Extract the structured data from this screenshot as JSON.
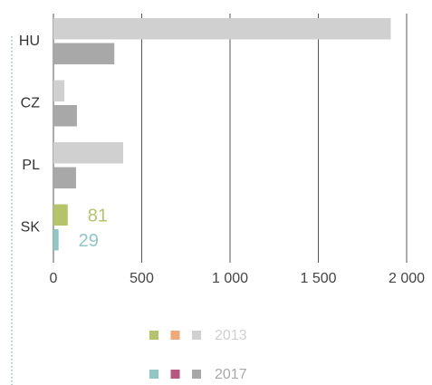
{
  "chart_data": {
    "type": "bar",
    "orientation": "horizontal",
    "categories": [
      "HU",
      "CZ",
      "PL",
      "SK"
    ],
    "series": [
      {
        "name": "2013",
        "color": "#d0d0d0",
        "point_colors": [
          "#d0d0d0",
          "#d0d0d0",
          "#d0d0d0",
          "#b5c46a"
        ],
        "legend_swatches": [
          "#b5c46a",
          "#f0a878",
          "#d0d0d0"
        ],
        "values": [
          1910,
          62,
          395,
          81
        ],
        "value_labels": [
          null,
          null,
          null,
          "81"
        ]
      },
      {
        "name": "2017",
        "color": "#a8a8a8",
        "point_colors": [
          "#a8a8a8",
          "#a8a8a8",
          "#a8a8a8",
          "#8fc7c5"
        ],
        "legend_swatches": [
          "#8fc7c5",
          "#b5577f",
          "#a8a8a8"
        ],
        "values": [
          345,
          133,
          128,
          29
        ],
        "value_labels": [
          null,
          null,
          null,
          "29"
        ]
      }
    ],
    "xlim": [
      0,
      2000
    ],
    "xticks": [
      0,
      500,
      {
        "value": 1000,
        "label": "1 000"
      },
      {
        "value": 1500,
        "label": "1 500"
      },
      {
        "value": 2000,
        "label": "2 000"
      }
    ],
    "grid": true
  }
}
